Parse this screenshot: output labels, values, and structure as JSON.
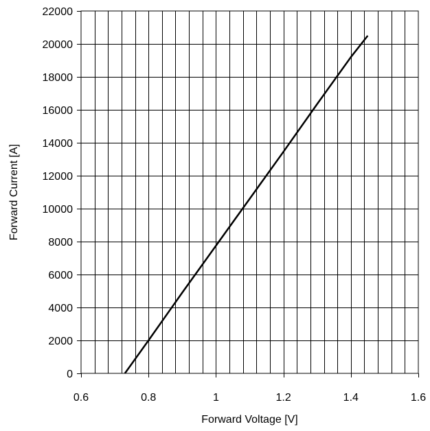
{
  "chart_data": {
    "type": "line",
    "title": "",
    "xlabel": "Forward Voltage [V]",
    "ylabel": "Forward Current [A]",
    "xlim": [
      0.6,
      1.6
    ],
    "ylim": [
      0,
      22000
    ],
    "x_ticks": [
      0.6,
      0.8,
      1,
      1.2,
      1.4,
      1.6
    ],
    "x_tick_labels": [
      "0.6",
      "0.8",
      "1",
      "1.2",
      "1.4",
      "1.6"
    ],
    "y_ticks": [
      0,
      2000,
      4000,
      6000,
      8000,
      10000,
      12000,
      14000,
      16000,
      18000,
      20000,
      22000
    ],
    "y_tick_labels": [
      "0",
      "2000",
      "4000",
      "6000",
      "8000",
      "10000",
      "12000",
      "14000",
      "16000",
      "18000",
      "20000",
      "22000"
    ],
    "x_minor_step": 0.04,
    "grid": true,
    "legend": "none",
    "series": [
      {
        "color": "#000000",
        "x": [
          0.73,
          0.8,
          0.9,
          1.0,
          1.1,
          1.2,
          1.3,
          1.4,
          1.45
        ],
        "y": [
          0,
          2000,
          4900,
          7750,
          10600,
          13450,
          16350,
          19200,
          20500
        ]
      }
    ]
  }
}
